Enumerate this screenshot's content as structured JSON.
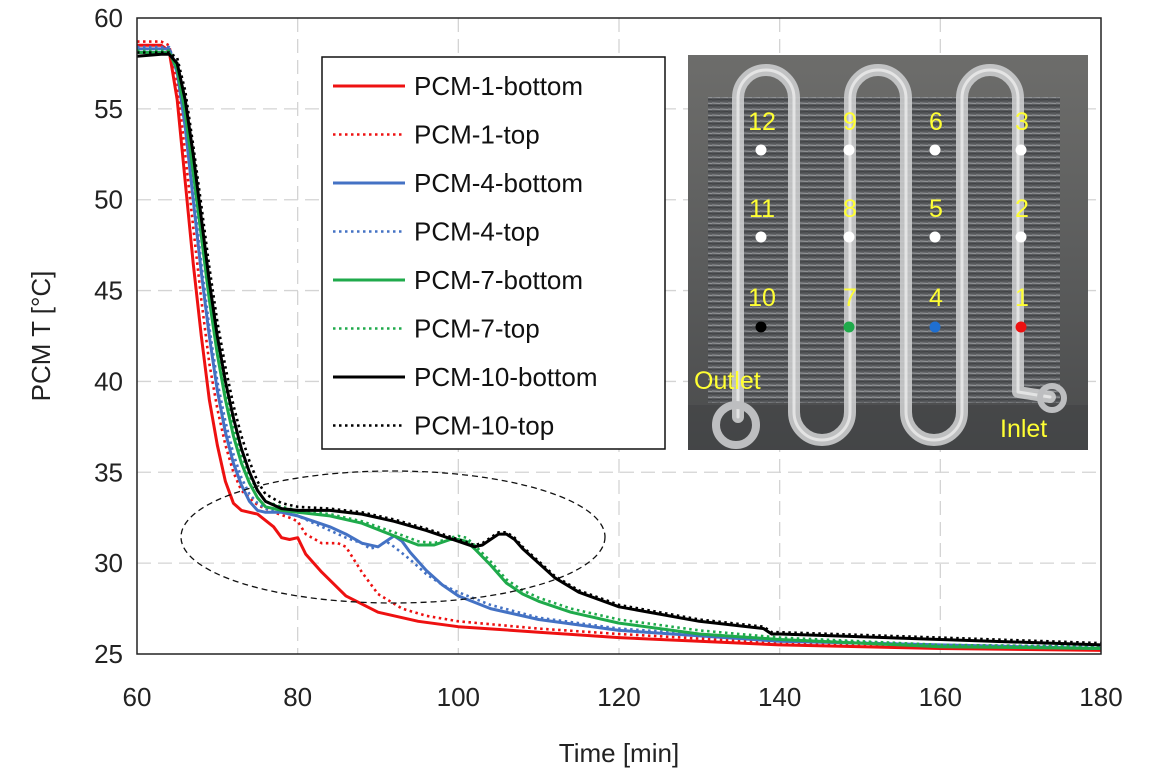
{
  "chart_data": {
    "type": "line",
    "xlabel": "Time [min]",
    "ylabel": "PCM T [°C]",
    "xlim": [
      60,
      180
    ],
    "ylim": [
      25,
      60
    ],
    "xticks": [
      60,
      80,
      100,
      120,
      140,
      160,
      180
    ],
    "yticks": [
      25,
      30,
      35,
      40,
      45,
      50,
      55,
      60
    ],
    "grid": "dashed",
    "legend_position": "top-center",
    "series": [
      {
        "name": "PCM-1-bottom",
        "color": "#ee1111",
        "dash": "solid",
        "x": [
          60,
          63,
          64,
          65,
          66,
          67,
          68,
          69,
          70,
          71,
          72,
          73,
          75,
          77,
          78,
          79,
          80,
          81,
          83,
          86,
          90,
          95,
          100,
          110,
          120,
          140,
          160,
          180
        ],
        "y": [
          58.5,
          58.5,
          58.2,
          55.5,
          51,
          46.5,
          42.5,
          39,
          36.5,
          34.5,
          33.3,
          32.9,
          32.7,
          32,
          31.4,
          31.3,
          31.4,
          30.5,
          29.5,
          28.2,
          27.3,
          26.8,
          26.5,
          26.2,
          25.9,
          25.5,
          25.3,
          25.2
        ]
      },
      {
        "name": "PCM-1-top",
        "color": "#ee1111",
        "dash": "dotted",
        "x": [
          60,
          63,
          64,
          65,
          66,
          67,
          68,
          69,
          70,
          71,
          72,
          73,
          75,
          77,
          79,
          80,
          81,
          83,
          85,
          86,
          87,
          88,
          90,
          93,
          96,
          100,
          110,
          120,
          140,
          160,
          180
        ],
        "y": [
          58.7,
          58.7,
          58.5,
          56.5,
          52.5,
          48.5,
          44.5,
          41,
          38.5,
          36.5,
          35,
          34,
          33.2,
          32.8,
          32.5,
          32.3,
          31.6,
          31.1,
          31.1,
          30.9,
          30.2,
          29.5,
          28.3,
          27.5,
          27.1,
          26.8,
          26.4,
          26.1,
          25.6,
          25.4,
          25.3
        ]
      },
      {
        "name": "PCM-4-bottom",
        "color": "#4472c4",
        "dash": "solid",
        "x": [
          60,
          63,
          64,
          65,
          66,
          67,
          68,
          69,
          70,
          71,
          72,
          73,
          74,
          75,
          76,
          78,
          80,
          82,
          84,
          86,
          88,
          90,
          91,
          92,
          93,
          94,
          96,
          98,
          100,
          104,
          110,
          120,
          140,
          160,
          180
        ],
        "y": [
          58.3,
          58.3,
          58.3,
          57,
          54,
          50,
          46,
          42.5,
          39.5,
          37.2,
          35.5,
          34.3,
          33.4,
          32.9,
          32.8,
          32.8,
          32.6,
          32.3,
          32,
          31.6,
          31.1,
          30.9,
          31.2,
          31.5,
          31.2,
          30.6,
          29.6,
          28.8,
          28.2,
          27.5,
          26.9,
          26.3,
          25.7,
          25.5,
          25.3
        ]
      },
      {
        "name": "PCM-4-top",
        "color": "#4472c4",
        "dash": "dotted",
        "x": [
          60,
          63,
          64,
          65,
          66,
          67,
          68,
          69,
          70,
          71,
          72,
          73,
          74,
          75,
          76,
          78,
          80,
          82,
          84,
          86,
          88,
          89,
          90,
          91,
          92,
          94,
          96,
          98,
          100,
          104,
          110,
          120,
          140,
          160,
          180
        ],
        "y": [
          58.4,
          58.4,
          58.4,
          57.2,
          54.5,
          50.5,
          46.5,
          43,
          40,
          37.8,
          36,
          34.7,
          33.8,
          33.3,
          33,
          32.8,
          32.6,
          32.2,
          31.8,
          31.4,
          31.1,
          30.8,
          30.9,
          31.2,
          30.9,
          30.2,
          29.4,
          28.8,
          28.4,
          27.7,
          27,
          26.4,
          25.8,
          25.5,
          25.4
        ]
      },
      {
        "name": "PCM-7-bottom",
        "color": "#1faa4b",
        "dash": "solid",
        "x": [
          60,
          63,
          64,
          65,
          66,
          67,
          68,
          69,
          70,
          71,
          72,
          73,
          74,
          75,
          76,
          78,
          80,
          84,
          88,
          92,
          95,
          97,
          99,
          100,
          101,
          102,
          104,
          106,
          108,
          110,
          114,
          120,
          130,
          140,
          160,
          180
        ],
        "y": [
          58.1,
          58.1,
          58.1,
          57.2,
          54.8,
          51.5,
          48,
          44.5,
          41.5,
          39,
          37,
          35.5,
          34.4,
          33.6,
          33.1,
          32.9,
          32.8,
          32.6,
          32.2,
          31.5,
          31.0,
          31.0,
          31.3,
          31.3,
          31.2,
          30.8,
          29.9,
          28.9,
          28.3,
          27.9,
          27.3,
          26.7,
          26.1,
          25.8,
          25.4,
          25.3
        ]
      },
      {
        "name": "PCM-7-top",
        "color": "#1faa4b",
        "dash": "dotted",
        "x": [
          60,
          63,
          64,
          65,
          66,
          67,
          68,
          69,
          70,
          71,
          72,
          73,
          74,
          75,
          76,
          78,
          80,
          84,
          88,
          92,
          95,
          97,
          99,
          100,
          101,
          102,
          104,
          106,
          108,
          110,
          114,
          120,
          130,
          140,
          160,
          180
        ],
        "y": [
          58.2,
          58.2,
          58.2,
          57.4,
          55.2,
          52,
          48.5,
          45,
          42,
          39.5,
          37.5,
          36,
          34.8,
          34,
          33.4,
          33.1,
          32.9,
          32.7,
          32.3,
          31.7,
          31.2,
          31.1,
          31.4,
          31.5,
          31.4,
          31.0,
          30.1,
          29.1,
          28.5,
          28.1,
          27.5,
          26.9,
          26.3,
          25.9,
          25.5,
          25.4
        ]
      },
      {
        "name": "PCM-10-bottom",
        "color": "#000000",
        "dash": "solid",
        "x": [
          60,
          63,
          64,
          65,
          66,
          67,
          68,
          69,
          70,
          71,
          72,
          73,
          74,
          75,
          76,
          78,
          80,
          84,
          88,
          92,
          96,
          100,
          102,
          103,
          104,
          105,
          106,
          107,
          108,
          110,
          112,
          115,
          120,
          130,
          138,
          139,
          140,
          160,
          180
        ],
        "y": [
          57.9,
          58.0,
          58.0,
          57.5,
          55.5,
          52.5,
          49,
          45.5,
          42.5,
          40,
          38,
          36.3,
          35,
          34,
          33.4,
          33.0,
          32.9,
          32.9,
          32.7,
          32.3,
          31.8,
          31.2,
          30.9,
          31.0,
          31.3,
          31.6,
          31.6,
          31.3,
          30.8,
          30.0,
          29.2,
          28.4,
          27.6,
          26.8,
          26.4,
          26.1,
          26.1,
          25.8,
          25.5
        ]
      },
      {
        "name": "PCM-10-top",
        "color": "#000000",
        "dash": "dotted",
        "x": [
          60,
          63,
          64,
          65,
          66,
          67,
          68,
          69,
          70,
          71,
          72,
          73,
          74,
          75,
          76,
          78,
          80,
          84,
          88,
          92,
          96,
          100,
          102,
          103,
          104,
          105,
          106,
          107,
          108,
          110,
          112,
          115,
          120,
          130,
          138,
          139,
          140,
          160,
          180
        ],
        "y": [
          58.1,
          58.1,
          58.1,
          57.8,
          56,
          53,
          49.7,
          46.3,
          43.3,
          40.8,
          38.7,
          37,
          35.6,
          34.5,
          33.8,
          33.3,
          33.1,
          33.0,
          32.8,
          32.4,
          31.9,
          31.3,
          31.0,
          31.1,
          31.4,
          31.7,
          31.7,
          31.4,
          30.9,
          30.1,
          29.3,
          28.5,
          27.7,
          26.9,
          26.5,
          26.2,
          26.2,
          25.9,
          25.6
        ]
      }
    ]
  },
  "inset_photo": {
    "labels": [
      "12",
      "9",
      "6",
      "3",
      "11",
      "8",
      "5",
      "2",
      "10",
      "7",
      "4",
      "1"
    ],
    "dot_colors": {
      "default": "#ffffff",
      "10": "#000000",
      "7": "#1faa4b",
      "4": "#1f6fd1",
      "1": "#ee1111"
    },
    "outlet_label": "Outlet",
    "inlet_label": "Inlet",
    "label_color": "#ffff33"
  }
}
